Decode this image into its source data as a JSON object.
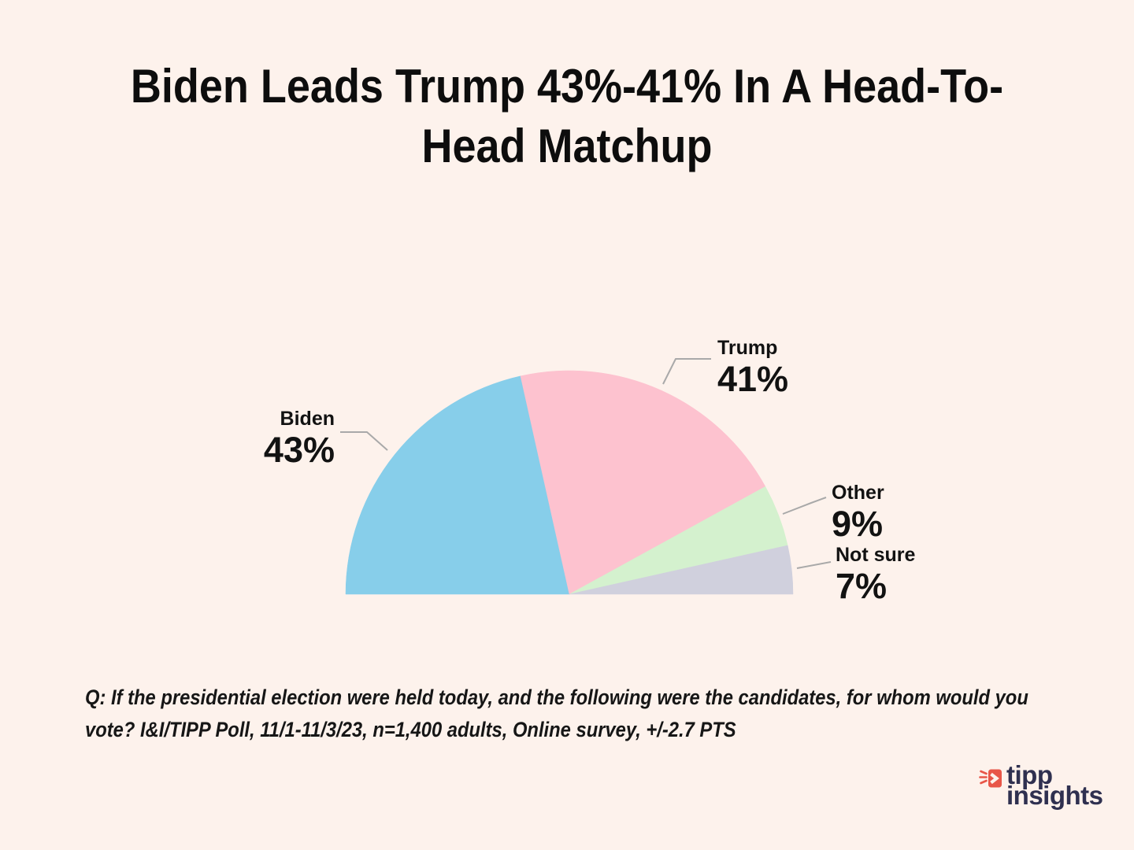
{
  "page": {
    "background_color": "#FDF2EC"
  },
  "title": {
    "line1": "Biden Leads Trump 43%-41% In A Head-To-",
    "line2": "Head Matchup",
    "full_text": "Biden Leads Trump 43%-41% In A Head-To-Head Matchup"
  },
  "chart_data": {
    "type": "pie",
    "variant": "semicircle",
    "title": "Biden Leads Trump 43%-41% In A Head-To-Head Matchup",
    "unit": "%",
    "total": 100,
    "categories": [
      "Biden",
      "Trump",
      "Other",
      "Not sure"
    ],
    "values": [
      43,
      41,
      9,
      7
    ],
    "slices": [
      {
        "name": "Biden",
        "value": 43,
        "label": "43%",
        "color": "#87CEEA"
      },
      {
        "name": "Trump",
        "value": 41,
        "label": "41%",
        "color": "#FDC2CF"
      },
      {
        "name": "Other",
        "value": 9,
        "label": "9%",
        "color": "#D4F1CE"
      },
      {
        "name": "Not sure",
        "value": 7,
        "label": "7%",
        "color": "#D0D0DD"
      }
    ],
    "legend_position": "callout-labels",
    "start_angle_deg": 180,
    "end_angle_deg": 0,
    "leader_line_color": "#A9A9A9"
  },
  "footnote": {
    "text": "Q:  If the presidential election were held today, and the following were the candidates, for whom would you vote? I&I/TIPP Poll, 11/1-11/3/23, n=1,400 adults, Online survey, +/-2.7 PTS"
  },
  "logo": {
    "line1": "tipp",
    "line2": "insights",
    "accent_color": "#E85648",
    "text_color": "#2F3050"
  }
}
